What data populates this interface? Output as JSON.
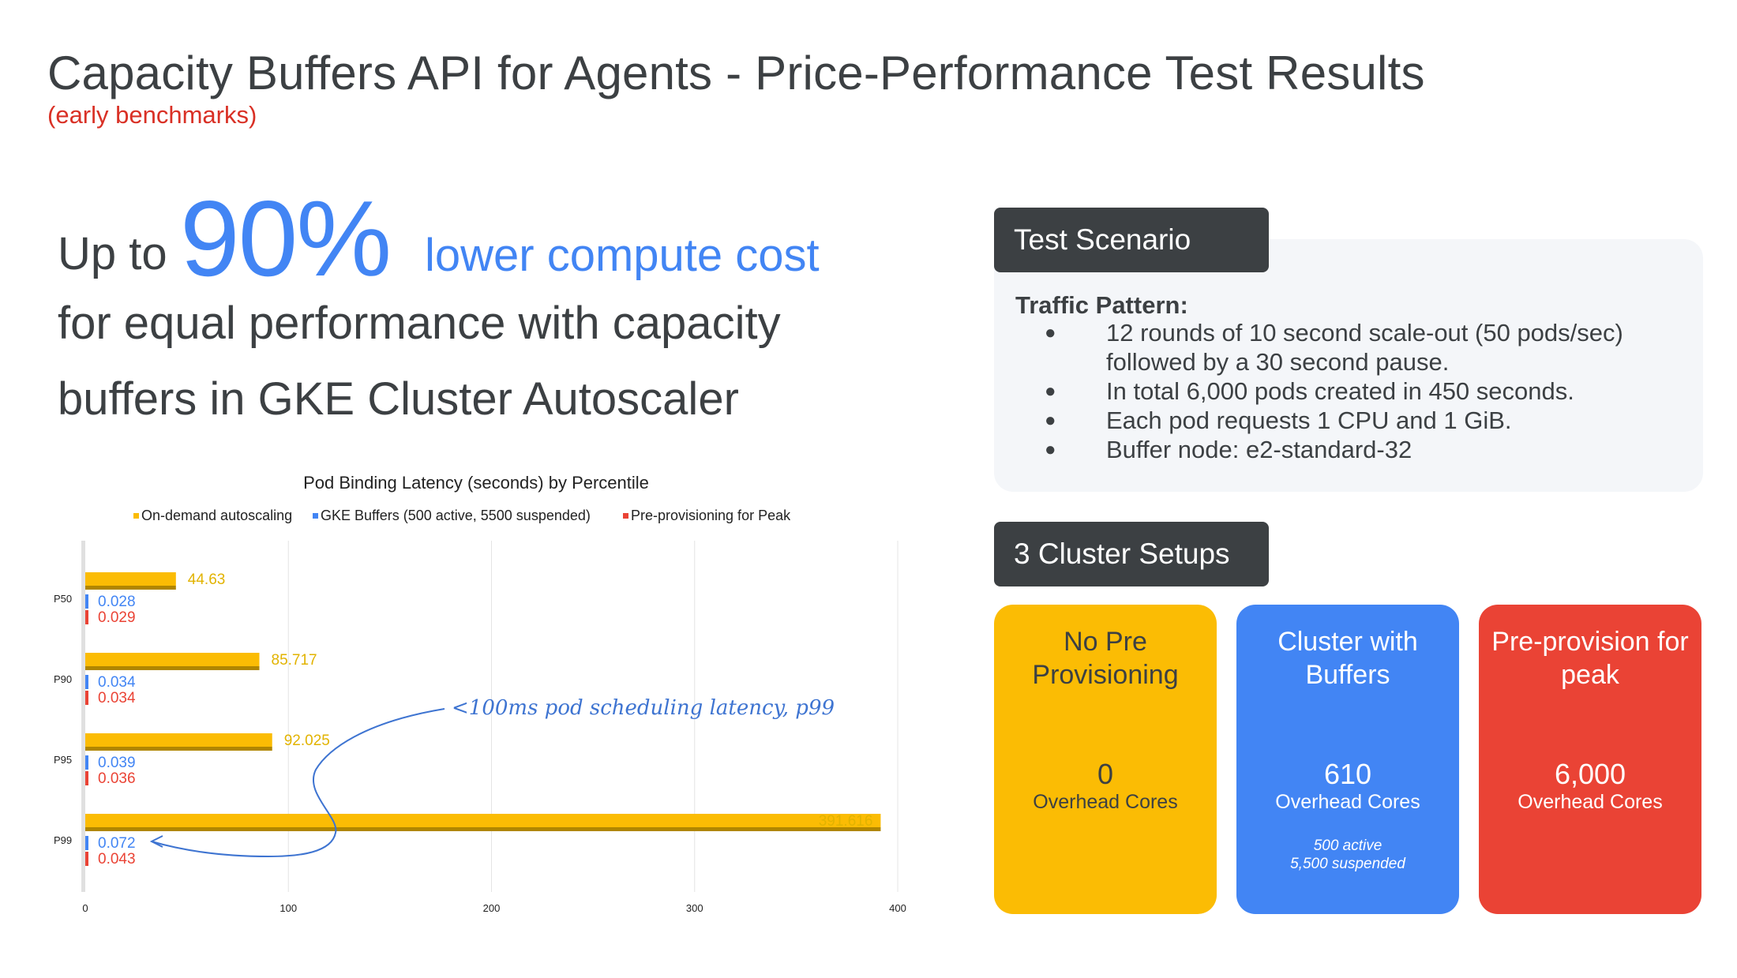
{
  "slide": {
    "title": "Capacity Buffers API for Agents - Price-Performance Test Results",
    "subtitle": "(early benchmarks)"
  },
  "headline": {
    "prefix": "Up to",
    "big_number": "90%",
    "highlight": "lower compute cost",
    "line2": "for equal performance with capacity",
    "line3": "buffers in GKE Cluster Autoscaler"
  },
  "scenario": {
    "tab_label": "Test Scenario",
    "heading": "Traffic Pattern:",
    "bullets": [
      "12 rounds of 10 second scale-out (50 pods/sec) followed by a 30 second pause.",
      "In total 6,000 pods created in 450 seconds.",
      "Each pod requests 1 CPU and 1 GiB.",
      "Buffer node: e2-standard-32"
    ]
  },
  "setups": {
    "tab_label": "3 Cluster Setups",
    "cards": [
      {
        "title": "No Pre Provisioning",
        "value": "0",
        "label": "Overhead Cores",
        "color": "#fbbc04"
      },
      {
        "title": "Cluster with Buffers",
        "value": "610",
        "label": "Overhead Cores",
        "note_line1": "500 active",
        "note_line2": "5,500 suspended",
        "color": "#4285f4"
      },
      {
        "title": "Pre-provision for peak",
        "value": "6,000",
        "label": "Overhead Cores",
        "color": "#ea4335"
      }
    ]
  },
  "chart_data": {
    "type": "bar",
    "orientation": "horizontal",
    "title": "Pod Binding Latency (seconds) by Percentile",
    "categories": [
      "P50",
      "P90",
      "P95",
      "P99"
    ],
    "series": [
      {
        "name": "On-demand autoscaling",
        "color": "#fbbc04",
        "values": [
          44.63,
          85.717,
          92.025,
          391.616
        ],
        "labels": [
          "44.63",
          "85.717",
          "92.025",
          "391.616"
        ]
      },
      {
        "name": "GKE Buffers (500 active, 5500 suspended)",
        "color": "#4285f4",
        "values": [
          0.028,
          0.034,
          0.039,
          0.072
        ],
        "labels": [
          "0.028",
          "0.034",
          "0.039",
          "0.072"
        ]
      },
      {
        "name": "Pre-provisioning for Peak",
        "color": "#ea4335",
        "values": [
          0.029,
          0.034,
          0.036,
          0.043
        ],
        "labels": [
          "0.029",
          "0.034",
          "0.036",
          "0.043"
        ]
      }
    ],
    "xlim": [
      0,
      400
    ],
    "xticks": [
      0,
      100,
      200,
      300,
      400
    ],
    "grid": true,
    "legend": "top",
    "annotation": "<100ms pod scheduling latency, p99"
  }
}
